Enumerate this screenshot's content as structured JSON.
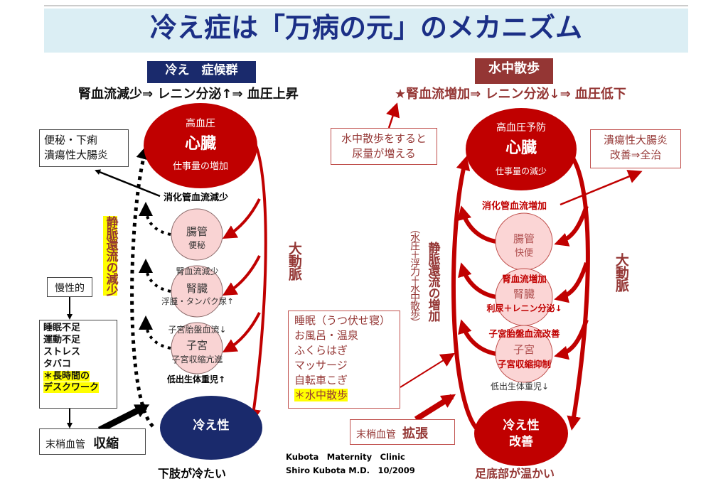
{
  "colors": {
    "title_bg": "#dbeef4",
    "title_text": "#1b2f86",
    "navy": "#1a2a6c",
    "red": "#c00000",
    "dark_red": "#943634",
    "pink": "#f9d3d3",
    "highlight": "#ffff00"
  },
  "title": "冷え症は「万病の元」のメカニズム",
  "left": {
    "header": "冷え　症候群",
    "subtitle": "腎血流減少⇒ レニン分泌↑⇒ 血圧上昇",
    "heart": {
      "top": "高血圧",
      "main": "心臓",
      "bottom": "仕事量の増加"
    },
    "symptom_box": [
      "便秘・下痢",
      "潰瘍性大腸炎"
    ],
    "digestive": "消化管血流減少",
    "intestine": {
      "main": "腸管",
      "sub": "便秘"
    },
    "kidney": {
      "above": "腎血流減少",
      "main": "腎臓",
      "sub": "浮腫・タンパク尿↑"
    },
    "uterus": {
      "above": "子宮胎盤血流↓",
      "main": "子宮",
      "sub": "子宮収縮亢進"
    },
    "low_birth": "低出生体重児↑",
    "venous": "静脈還流の減少",
    "aorta": "大動脈",
    "chronic": "慢性的",
    "causes": [
      "睡眠不足",
      "運動不足",
      "ストレス",
      "タバコ"
    ],
    "causes_highlight": [
      "＊長時間の",
      "デスクワーク"
    ],
    "peripheral": {
      "label": "末梢血管",
      "action": "収縮"
    },
    "cold": "冷え性",
    "legs": "下肢が冷たい"
  },
  "right": {
    "header": "水中散歩",
    "subtitle": "★腎血流増加⇒ レニン分泌↓⇒ 血圧低下",
    "urine_box": [
      "水中散歩をすると",
      "尿量が増える"
    ],
    "heart": {
      "top": "高血圧予防",
      "main": "心臓",
      "bottom": "仕事量の減少"
    },
    "colitis_box": [
      "潰瘍性大腸炎",
      "改善⇒全治"
    ],
    "digestive": "消化管血流増加",
    "intestine": {
      "main": "腸管",
      "sub": "快便"
    },
    "kidney": {
      "above": "腎血流増加",
      "main": "腎臓",
      "sub": "利尿＋レニン分泌↓"
    },
    "uterus": {
      "above": "子宮胎盤血流改善",
      "main": "子宮",
      "sub": "子宮収縮抑制"
    },
    "low_birth": "低出生体重児↓",
    "venous": "静脈還流の増加",
    "water": "（水圧＋浮力＋水中散歩）",
    "aorta": "大動脈",
    "remedies": [
      "睡眠（うつ伏せ寝）",
      "お風呂・温泉",
      "ふくらはぎ",
      "マッサージ",
      "自転車こぎ"
    ],
    "remedy_highlight": "＊水中散歩",
    "peripheral": {
      "label": "末梢血管",
      "action": "拡張"
    },
    "cold": [
      "冷え性",
      "改善"
    ],
    "feet": "足底部が温かい"
  },
  "credit": [
    "Kubota　Maternity　Clinic",
    "Shiro Kubota M.D.　10/2009"
  ]
}
